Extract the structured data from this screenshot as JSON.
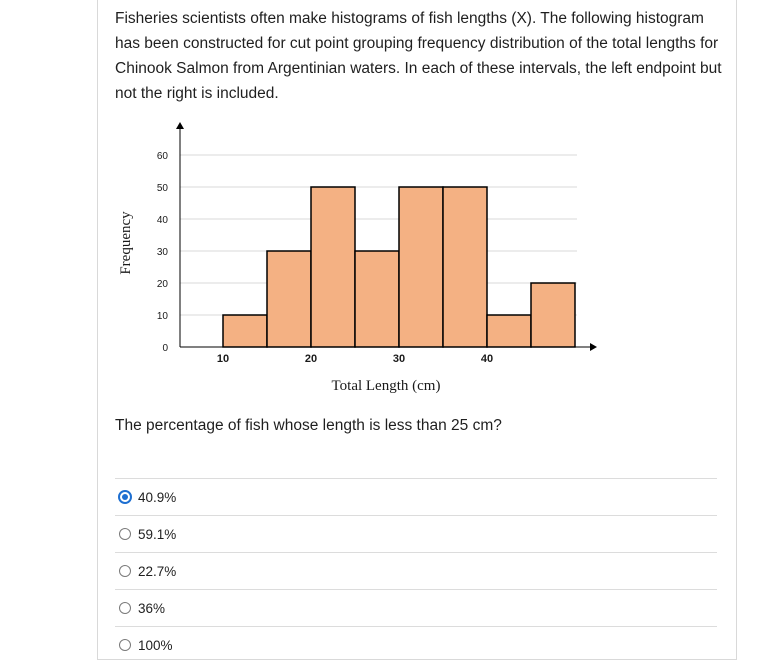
{
  "question": {
    "text": "Fisheries scientists often make histograms of fish lengths (X). The following histogram has been constructed for cut point grouping frequency distribution of the total lengths for Chinook Salmon from Argentinian waters. In each of these intervals, the left endpoint but not the right is included."
  },
  "chart_data": {
    "type": "bar",
    "bins": [
      {
        "start": 10,
        "end": 15,
        "value": 10
      },
      {
        "start": 15,
        "end": 20,
        "value": 30
      },
      {
        "start": 20,
        "end": 25,
        "value": 50
      },
      {
        "start": 25,
        "end": 30,
        "value": 30
      },
      {
        "start": 30,
        "end": 35,
        "value": 50
      },
      {
        "start": 35,
        "end": 40,
        "value": 50
      },
      {
        "start": 40,
        "end": 45,
        "value": 10
      },
      {
        "start": 45,
        "end": 50,
        "value": 20
      }
    ],
    "xlabel": "Total Length (cm)",
    "ylabel": "Frequency",
    "xticks": [
      10,
      20,
      30,
      40
    ],
    "yticks": [
      0,
      10,
      20,
      30,
      40,
      50,
      60
    ],
    "xlim": [
      10,
      50
    ],
    "ylim": [
      0,
      60
    ],
    "grid": true,
    "bar_color": "#f4b183",
    "bar_edge_color": "#000000"
  },
  "prompt": "The percentage of fish whose length is less than 25 cm?",
  "options": [
    {
      "label": "40.9%",
      "selected": true
    },
    {
      "label": "59.1%",
      "selected": false
    },
    {
      "label": "22.7%",
      "selected": false
    },
    {
      "label": "36%",
      "selected": false
    },
    {
      "label": "100%",
      "selected": false
    }
  ]
}
